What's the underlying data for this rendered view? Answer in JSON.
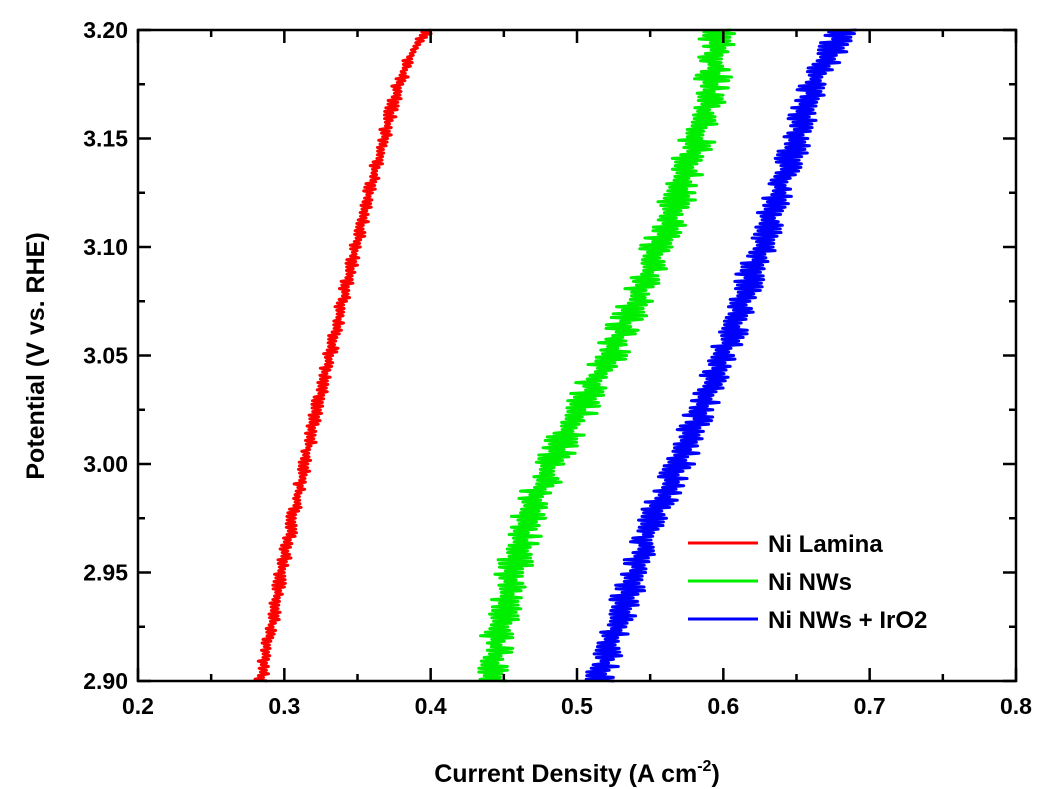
{
  "chart_data": {
    "type": "line",
    "xlabel": "Current Density (A cm",
    "xlabel_sup": "-2",
    "xlabel_close": ")",
    "ylabel": "Potential (V vs. RHE)",
    "xlim": [
      0.2,
      0.8
    ],
    "ylim": [
      2.9,
      3.2
    ],
    "xticks": [
      "0.2",
      "0.3",
      "0.4",
      "0.5",
      "0.6",
      "0.7",
      "0.8"
    ],
    "yticks": [
      "2.90",
      "2.95",
      "3.00",
      "3.05",
      "3.10",
      "3.15",
      "3.20"
    ],
    "grid": false,
    "legend_position": "bottom-right",
    "series": [
      {
        "name": "Ni Lamina",
        "color": "#ff0000",
        "points": [
          [
            0.284,
            2.9
          ],
          [
            0.291,
            2.925
          ],
          [
            0.298,
            2.95
          ],
          [
            0.306,
            2.975
          ],
          [
            0.314,
            3.0
          ],
          [
            0.322,
            3.025
          ],
          [
            0.331,
            3.05
          ],
          [
            0.34,
            3.075
          ],
          [
            0.349,
            3.1
          ],
          [
            0.358,
            3.125
          ],
          [
            0.368,
            3.15
          ],
          [
            0.378,
            3.175
          ],
          [
            0.388,
            3.19
          ],
          [
            0.398,
            3.2
          ]
        ]
      },
      {
        "name": "Ni NWs",
        "color": "#00ee00",
        "points": [
          [
            0.44,
            2.9
          ],
          [
            0.447,
            2.925
          ],
          [
            0.456,
            2.95
          ],
          [
            0.466,
            2.975
          ],
          [
            0.482,
            3.0
          ],
          [
            0.502,
            3.025
          ],
          [
            0.522,
            3.05
          ],
          [
            0.54,
            3.075
          ],
          [
            0.556,
            3.1
          ],
          [
            0.57,
            3.125
          ],
          [
            0.582,
            3.15
          ],
          [
            0.592,
            3.175
          ],
          [
            0.597,
            3.2
          ]
        ]
      },
      {
        "name": "Ni NWs + IrO2",
        "color": "#0000ff",
        "points": [
          [
            0.515,
            2.9
          ],
          [
            0.527,
            2.925
          ],
          [
            0.54,
            2.95
          ],
          [
            0.552,
            2.975
          ],
          [
            0.57,
            3.0
          ],
          [
            0.585,
            3.025
          ],
          [
            0.6,
            3.05
          ],
          [
            0.613,
            3.075
          ],
          [
            0.626,
            3.1
          ],
          [
            0.638,
            3.125
          ],
          [
            0.65,
            3.15
          ],
          [
            0.662,
            3.175
          ],
          [
            0.682,
            3.2
          ]
        ]
      }
    ]
  }
}
